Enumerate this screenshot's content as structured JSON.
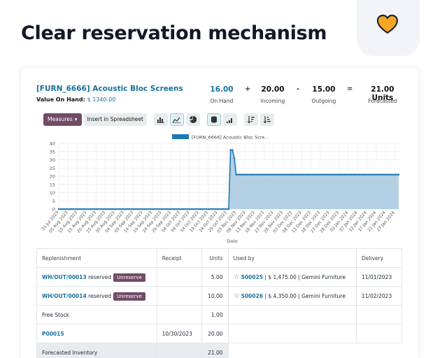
{
  "headline": "Clear reservation mechanism",
  "product": {
    "title": "[FURN_6666] Acoustic Bloc Screens",
    "value_label": "Value On Hand:",
    "value_amount": "$ 1340.00"
  },
  "summary": {
    "on_hand": {
      "value": "16.00",
      "label": "On Hand"
    },
    "plus": "+",
    "incoming": {
      "value": "20.00",
      "label": "Incoming"
    },
    "minus": "-",
    "outgoing": {
      "value": "15.00",
      "label": "Outgoing"
    },
    "equals": "=",
    "forecasted": {
      "value": "21.00 Units",
      "label": "Forecasted"
    }
  },
  "toolbar": {
    "measures_label": "Measures",
    "insert_label": "Insert in Spreadsheet"
  },
  "chart_data": {
    "type": "area",
    "legend": "[FURN_6666] Acoustic Bloc Scre...",
    "xlabel": "Date",
    "ylabel": "",
    "ylim": [
      0,
      40
    ],
    "yticks": [
      "0",
      "5",
      "10",
      "15",
      "20",
      "25",
      "30",
      "35",
      "40"
    ],
    "x_tick_labels": [
      "31 Jul 2023",
      "05 Aug 2023",
      "10 Aug 2023",
      "15 Aug 2023",
      "20 Aug 2023",
      "25 Aug 2023",
      "30 Aug 2023",
      "04 Sep 2023",
      "09 Sep 2023",
      "14 Sep 2023",
      "19 Sep 2023",
      "24 Sep 2023",
      "29 Sep 2023",
      "04 Oct 2023",
      "09 Oct 2023",
      "14 Oct 2023",
      "19 Oct 2023",
      "24 Oct 2023",
      "29 Oct 2023",
      "03 Nov 2023",
      "08 Nov 2023",
      "13 Nov 2023",
      "18 Nov 2023",
      "23 Nov 2023",
      "28 Nov 2023",
      "03 Dec 2023",
      "08 Dec 2023",
      "13 Dec 2023",
      "18 Dec 2023",
      "23 Dec 2023",
      "28 Dec 2023",
      "02 Jan 2024",
      "07 Jan 2024",
      "12 Jan 2024",
      "17 Jan 2024",
      "22 Jan 2024",
      "27 Jan 2024"
    ],
    "series": [
      {
        "name": "[FURN_6666] Acoustic Bloc Scre...",
        "color": "#1f77b4",
        "points": [
          {
            "date": "2023-07-31",
            "value": 0
          },
          {
            "date": "2023-10-30",
            "value": 0
          },
          {
            "date": "2023-10-31",
            "value": 36
          },
          {
            "date": "2023-11-01",
            "value": 36
          },
          {
            "date": "2023-11-02",
            "value": 31
          },
          {
            "date": "2023-11-03",
            "value": 21
          },
          {
            "date": "2024-01-29",
            "value": 21
          }
        ]
      }
    ],
    "grid": true,
    "legend_position": "top-center"
  },
  "table": {
    "headers": {
      "replenishment": "Replenishment",
      "receipt": "Receipt",
      "units": "Units",
      "used_by": "Used by",
      "delivery": "Delivery"
    },
    "rows": [
      {
        "ref": "WH/OUT/00013",
        "state": "reserved",
        "action": "Unreserve",
        "receipt": "",
        "units": "5.00",
        "order": "S00025",
        "amount": "$ 1,475.00",
        "customer": "Gemini Furniture",
        "delivery": "11/01/2023"
      },
      {
        "ref": "WH/OUT/00014",
        "state": "reserved",
        "action": "Unreserve",
        "receipt": "",
        "units": "10.00",
        "order": "S00026",
        "amount": "$ 4,350.00",
        "customer": "Gemini Furniture",
        "delivery": "11/02/2023"
      }
    ],
    "free_stock": {
      "label": "Free Stock",
      "units": "1.00"
    },
    "po_row": {
      "ref": "P00015",
      "receipt": "10/30/2023",
      "units": "20.00"
    },
    "forecast_row": {
      "label": "Forecasted Inventory",
      "units": "21.00"
    }
  },
  "colors": {
    "primary": "#714b67",
    "link": "#17729d",
    "chart_fill": "#a6c8e1",
    "chart_line": "#1f77b4",
    "heart": "#f5a623"
  }
}
